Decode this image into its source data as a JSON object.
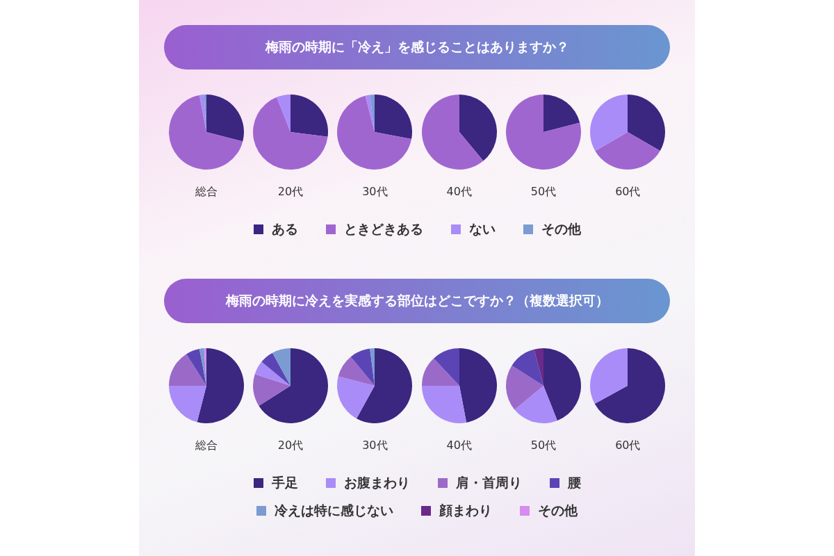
{
  "chart_data": [
    {
      "type": "pie",
      "title": "梅雨の時期に「冷え」を感じることはありますか？",
      "xlabel": "総合",
      "legend": "bottom",
      "categories": [
        "ある",
        "ときどきある",
        "ない",
        "その他"
      ],
      "values": [
        29,
        68,
        2,
        1
      ],
      "colors": [
        "#3b2680",
        "#a066d0",
        "#a98cf7",
        "#7b9bd2"
      ]
    },
    {
      "type": "pie",
      "xlabel": "20代",
      "categories": [
        null,
        null,
        null,
        null
      ],
      "values": [
        27,
        67,
        6,
        null
      ],
      "colors": [
        "#3b2680",
        "#a066d0",
        "#a98cf7",
        "#7b9bd2"
      ]
    },
    {
      "type": "pie",
      "xlabel": "30代",
      "categories": [
        null,
        null,
        null,
        null
      ],
      "values": [
        28,
        68,
        2,
        2
      ],
      "colors": [
        "#3b2680",
        "#a066d0",
        "#a98cf7",
        "#7b9bd2"
      ]
    },
    {
      "type": "pie",
      "xlabel": "40代",
      "categories": [
        null,
        null,
        null,
        null
      ],
      "values": [
        39,
        61,
        null,
        null
      ],
      "colors": [
        "#3b2680",
        "#a066d0",
        "#a98cf7",
        "#7b9bd2"
      ]
    },
    {
      "type": "pie",
      "xlabel": "50代",
      "categories": [
        null,
        null,
        null,
        null
      ],
      "values": [
        21,
        79,
        null,
        null
      ],
      "colors": [
        "#3b2680",
        "#a066d0",
        "#a98cf7",
        "#7b9bd2"
      ]
    },
    {
      "type": "pie",
      "xlabel": "60代",
      "categories": [
        null,
        null,
        null,
        null
      ],
      "values": [
        33.3,
        33.3,
        33.4,
        null
      ],
      "colors": [
        "#3b2680",
        "#a066d0",
        "#a98cf7",
        "#7b9bd2"
      ]
    },
    {
      "type": "pie",
      "title": "梅雨の時期に冷えを実感する部位はどこですか？（複数選択可）",
      "xlabel": "総合",
      "legend": "bottom",
      "categories": [
        "手足",
        "お腹まわり",
        "肩・首周り",
        "腰",
        "冷えは特に感じない",
        "顔まわり",
        "その他"
      ],
      "values": [
        54,
        21,
        16,
        6,
        2,
        null,
        1
      ],
      "colors": [
        "#3b2680",
        "#a98cf7",
        "#9b6ac8",
        "#5b45b5",
        "#7b9bd2",
        "#6a2a8a",
        "#d68cf0"
      ]
    },
    {
      "type": "pie",
      "xlabel": "20代",
      "categories": [
        null,
        null,
        null,
        null,
        null
      ],
      "values": [
        66,
        14,
        6,
        6,
        8
      ],
      "colors": [
        "#3b2680",
        "#9b6ac8",
        "#a98cf7",
        "#5b45b5",
        "#7b9bd2"
      ]
    },
    {
      "type": "pie",
      "xlabel": "30代",
      "categories": [
        null,
        null,
        null,
        null,
        null
      ],
      "values": [
        58,
        21,
        10,
        9,
        2
      ],
      "colors": [
        "#3b2680",
        "#a98cf7",
        "#9b6ac8",
        "#5b45b5",
        "#7b9bd2"
      ]
    },
    {
      "type": "pie",
      "xlabel": "40代",
      "categories": [
        null,
        null,
        null,
        null
      ],
      "values": [
        47,
        28,
        13,
        12
      ],
      "colors": [
        "#3b2680",
        "#a98cf7",
        "#9b6ac8",
        "#5b45b5"
      ]
    },
    {
      "type": "pie",
      "xlabel": "50代",
      "categories": [
        null,
        null,
        null,
        null,
        null
      ],
      "values": [
        44,
        20,
        20,
        12,
        4
      ],
      "colors": [
        "#3b2680",
        "#a98cf7",
        "#9b6ac8",
        "#5b45b5",
        "#6a2a8a"
      ]
    },
    {
      "type": "pie",
      "xlabel": "60代",
      "categories": [
        null,
        null
      ],
      "values": [
        67,
        33
      ],
      "colors": [
        "#3b2680",
        "#a98cf7"
      ]
    }
  ]
}
